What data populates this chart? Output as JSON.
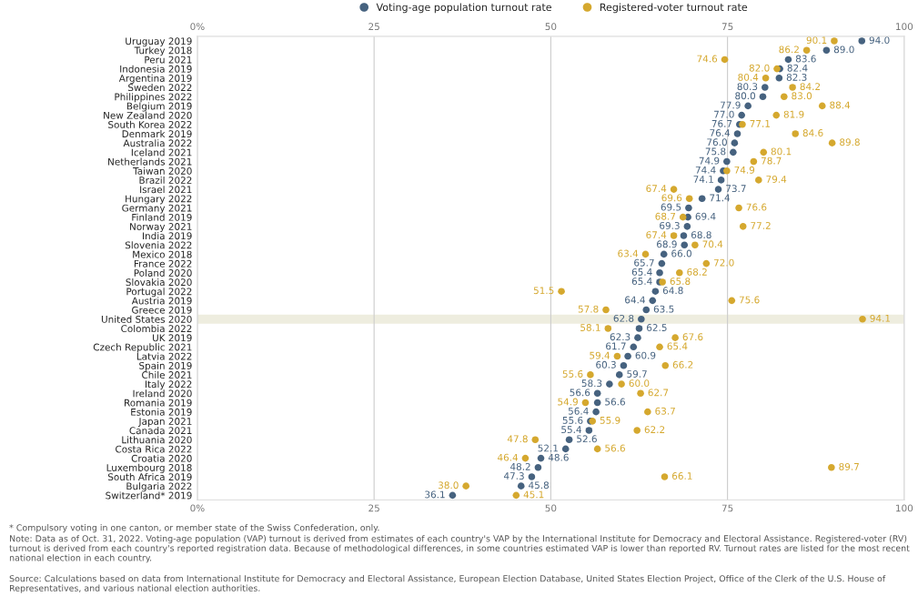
{
  "chart_data": {
    "type": "scatter",
    "categories": [
      "Uruguay 2019",
      "Turkey 2018",
      "Peru 2021",
      "Indonesia 2019",
      "Argentina 2019",
      "Sweden 2022",
      "Philippines 2022",
      "Belgium 2019",
      "New Zealand 2020",
      "South Korea 2022",
      "Denmark 2019",
      "Australia 2022",
      "Iceland 2021",
      "Netherlands 2021",
      "Taiwan 2020",
      "Brazil 2022",
      "Israel 2021",
      "Hungary 2022",
      "Germany 2021",
      "Finland 2019",
      "Norway 2021",
      "India 2019",
      "Slovenia 2022",
      "Mexico 2018",
      "France 2022",
      "Poland 2020",
      "Slovakia 2020",
      "Portugal 2022",
      "Austria 2019",
      "Greece 2019",
      "United States 2020",
      "Colombia 2022",
      "UK 2019",
      "Czech Republic 2021",
      "Latvia 2022",
      "Spain 2019",
      "Chile 2021",
      "Italy 2022",
      "Ireland 2020",
      "Romania 2019",
      "Estonia 2019",
      "Japan 2021",
      "Canada 2021",
      "Lithuania 2020",
      "Costa Rica 2022",
      "Croatia 2020",
      "Luxembourg 2018",
      "South Africa 2019",
      "Bulgaria 2022",
      "Switzerland* 2019"
    ],
    "orientation": "horizontal",
    "series": [
      {
        "name": "Voting-age population turnout rate",
        "color": "#46627f",
        "values": [
          94.0,
          89.0,
          83.6,
          82.4,
          82.3,
          80.3,
          80.0,
          77.9,
          77.0,
          76.7,
          76.4,
          76.0,
          75.8,
          74.9,
          74.4,
          74.1,
          73.7,
          71.4,
          69.5,
          69.4,
          69.3,
          68.8,
          68.9,
          66.0,
          65.7,
          65.4,
          65.4,
          64.8,
          64.4,
          63.5,
          62.8,
          62.5,
          62.3,
          61.7,
          60.9,
          60.3,
          59.7,
          58.3,
          56.6,
          56.6,
          56.4,
          55.6,
          55.4,
          52.6,
          52.1,
          48.6,
          48.2,
          47.3,
          45.8,
          36.1
        ],
        "value_labels": [
          "94.0",
          "89.0",
          "83.6",
          "82.4",
          "82.3",
          "80.3",
          "80.0",
          "77.9",
          "77.0",
          "76.7",
          "76.4",
          "76.0",
          "75.8",
          "74.9",
          "74.4",
          "74.1",
          "73.7",
          "71.4",
          "69.5",
          "69.4",
          "69.3",
          "68.8",
          "68.9",
          "66.0",
          "65.7",
          "65.4",
          "65.4",
          "64.8",
          "64.4",
          "63.5",
          "62.8",
          "62.5",
          "62.3",
          "61.7",
          "60.9",
          "60.3",
          "59.7",
          "58.3",
          "56.6",
          "56.6",
          "56.4",
          "55.6",
          "55.4",
          "52.6",
          "52.1",
          "48.6",
          "48.2",
          "47.3",
          "45.8",
          "36.1"
        ]
      },
      {
        "name": "Registered-voter turnout rate",
        "color": "#d5a82e",
        "values": [
          90.1,
          86.2,
          74.6,
          82.0,
          80.4,
          84.2,
          83.0,
          88.4,
          81.9,
          77.1,
          84.6,
          89.8,
          80.1,
          78.7,
          74.9,
          79.4,
          67.4,
          69.6,
          76.6,
          68.7,
          77.2,
          67.4,
          70.4,
          63.4,
          72.0,
          68.2,
          65.8,
          51.5,
          75.6,
          57.8,
          94.1,
          58.1,
          67.6,
          65.4,
          59.4,
          66.2,
          55.6,
          60.0,
          62.7,
          54.9,
          63.7,
          55.9,
          62.2,
          47.8,
          56.6,
          46.4,
          89.7,
          66.1,
          38.0,
          45.1
        ],
        "value_labels": [
          "90.1",
          "86.2",
          "74.6",
          "82.0",
          "80.4",
          "84.2",
          "83.0",
          "88.4",
          "81.9",
          "77.1",
          "84.6",
          "89.8",
          "80.1",
          "78.7",
          "74.9",
          "79.4",
          "67.4",
          "69.6",
          "76.6",
          "68.7",
          "77.2",
          "67.4",
          "70.4",
          "63.4",
          "72.0",
          "68.2",
          "65.8",
          "51.5",
          "75.6",
          "57.8",
          "94.1",
          "58.1",
          "67.6",
          "65.4",
          "59.4",
          "66.2",
          "55.6",
          "60.0",
          "62.7",
          "54.9",
          "63.7",
          "55.9",
          "62.2",
          "47.8",
          "56.6",
          "46.4",
          "89.7",
          "66.1",
          "38.0",
          "45.1"
        ]
      }
    ],
    "xlim": [
      0,
      100
    ],
    "xticks": [
      {
        "value": 0,
        "label": "0%"
      },
      25,
      50,
      75,
      100
    ],
    "x2lim": [
      0,
      100
    ],
    "x2ticks": [
      {
        "value": 0,
        "label": "0%"
      },
      25,
      50,
      75,
      100
    ],
    "grid": "x",
    "legend": "top",
    "marker": "circle",
    "bands": [
      {
        "axis": "y",
        "from": "United States 2020",
        "to": "United States 2020",
        "color": "#eeeddf"
      }
    ],
    "annotations": [
      "* Compulsory voting in one canton, or member state of the Swiss Confederation, only.",
      "Note: Data as of Oct. 31, 2022. Voting-age population (VAP) turnout is derived from estimates of each country's VAP by the International Institute for Democracy and Electoral Assistance. Registered-voter (RV) turnout is derived from each country's reported registration data. Because of methodological differences, in some countries estimated VAP is lower than reported RV. Turnout rates are listed for the most recent national election in each country.",
      "Source: Calculations based on data from International Institute for Democracy and Electoral Assistance, European Election Database, United States Election Project, Office of the Clerk of the U.S. House of Representatives, and various national election authorities."
    ]
  }
}
